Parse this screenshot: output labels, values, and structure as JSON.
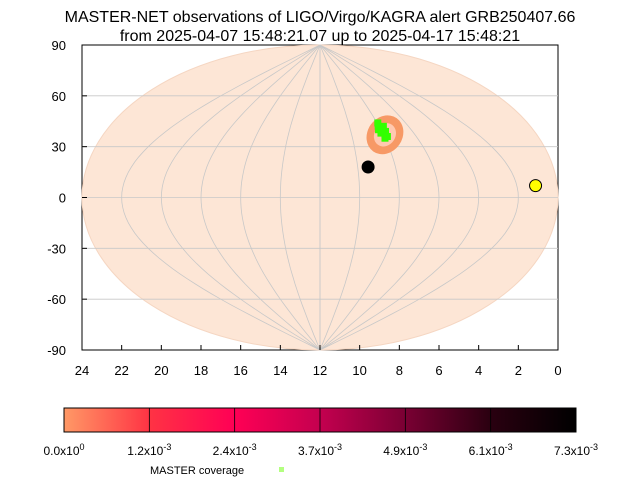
{
  "chart_data": {
    "type": "scatter",
    "projection": "mollweide",
    "title_line1": "MASTER-NET observations of LIGO/Virgo/KAGRA alert GRB250407.66",
    "title_line2": "from 2025-04-07 15:48:21.07 up to 2025-04-17 15:48:21",
    "x_ticks": [
      "24",
      "22",
      "20",
      "18",
      "16",
      "14",
      "12",
      "10",
      "8",
      "6",
      "4",
      "2",
      "0"
    ],
    "y_ticks": [
      "90",
      "60",
      "30",
      "0",
      "-30",
      "-60",
      "-90"
    ],
    "xlim": [
      24,
      0
    ],
    "ylim": [
      -90,
      90
    ],
    "grid": true,
    "colors": {
      "sky_fill": "#fde6d6",
      "probability_region": "#f79966",
      "coverage": "#33ff00",
      "black_marker": "#000000",
      "yellow_marker": "#ffff00",
      "grid": "#c8c8c8"
    },
    "probability_region": {
      "ra_center": 7.9,
      "dec_center": 37,
      "ra_halfwidth": 1.1,
      "dec_halfwidth": 12
    },
    "coverage_points": [
      {
        "ra": 8.05,
        "dec": 42
      },
      {
        "ra": 7.95,
        "dec": 44
      },
      {
        "ra": 7.85,
        "dec": 41
      },
      {
        "ra": 8.1,
        "dec": 38
      },
      {
        "ra": 7.9,
        "dec": 37
      },
      {
        "ra": 7.75,
        "dec": 39
      },
      {
        "ra": 8.0,
        "dec": 35
      },
      {
        "ra": 7.8,
        "dec": 36
      },
      {
        "ra": 7.7,
        "dec": 42
      },
      {
        "ra": 8.15,
        "dec": 40
      },
      {
        "ra": 7.95,
        "dec": 40
      }
    ],
    "markers": [
      {
        "name": "black-dot",
        "ra": 9.45,
        "dec": 18,
        "color": "#000000"
      },
      {
        "name": "yellow-dot",
        "ra": 1.05,
        "dec": 7,
        "color": "#ffff00"
      }
    ],
    "colorbar": {
      "ticks": [
        "0.0x10",
        "1.2x10",
        "2.4x10",
        "3.7x10",
        "4.9x10",
        "6.1x10",
        "7.3x10"
      ],
      "exponents": [
        "0",
        "-3",
        "-3",
        "-3",
        "-3",
        "-3",
        "-3"
      ],
      "gradient": [
        "#ff9966",
        "#ff3344",
        "#ff0055",
        "#c4004f",
        "#7a0033",
        "#2a0010",
        "#000000"
      ]
    },
    "legend": {
      "label": "MASTER coverage",
      "color": "#b3ff80"
    }
  }
}
